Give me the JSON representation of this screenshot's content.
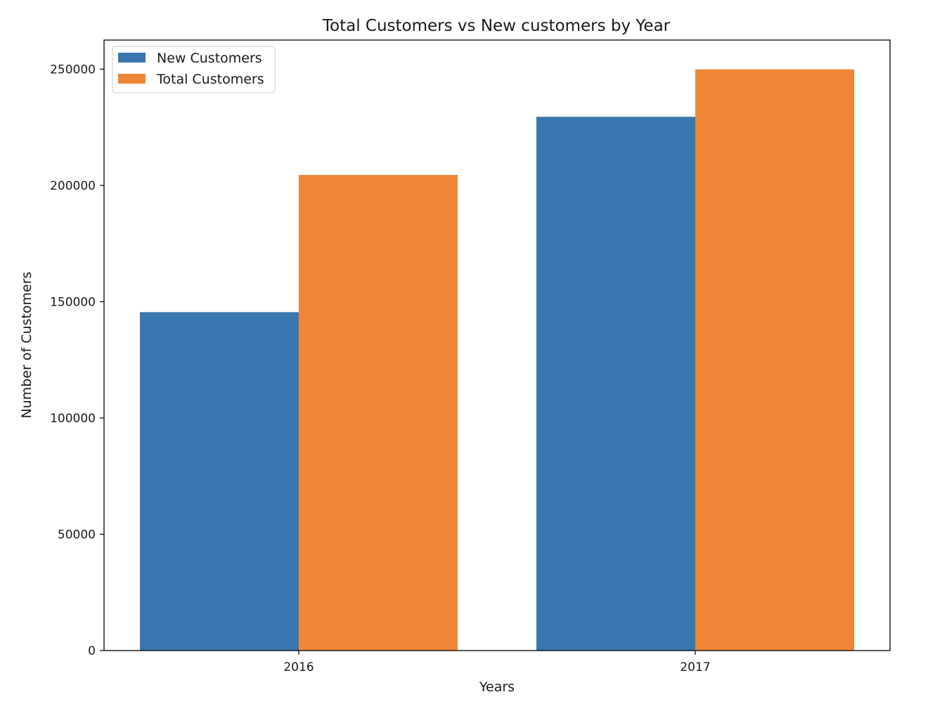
{
  "chart_data": {
    "type": "bar",
    "title": "Total Customers vs New customers by Year",
    "xlabel": "Years",
    "ylabel": "Number of Customers",
    "categories": [
      "2016",
      "2017"
    ],
    "series": [
      {
        "name": "New Customers",
        "color": "#3a76af",
        "values": [
          145500,
          229500
        ]
      },
      {
        "name": "Total Customers",
        "color": "#ef8636",
        "values": [
          204500,
          249900
        ]
      }
    ],
    "ylim": [
      0,
      262500
    ],
    "yticks": [
      0,
      50000,
      100000,
      150000,
      200000,
      250000
    ],
    "grid": false,
    "legend_position": "top-left"
  }
}
